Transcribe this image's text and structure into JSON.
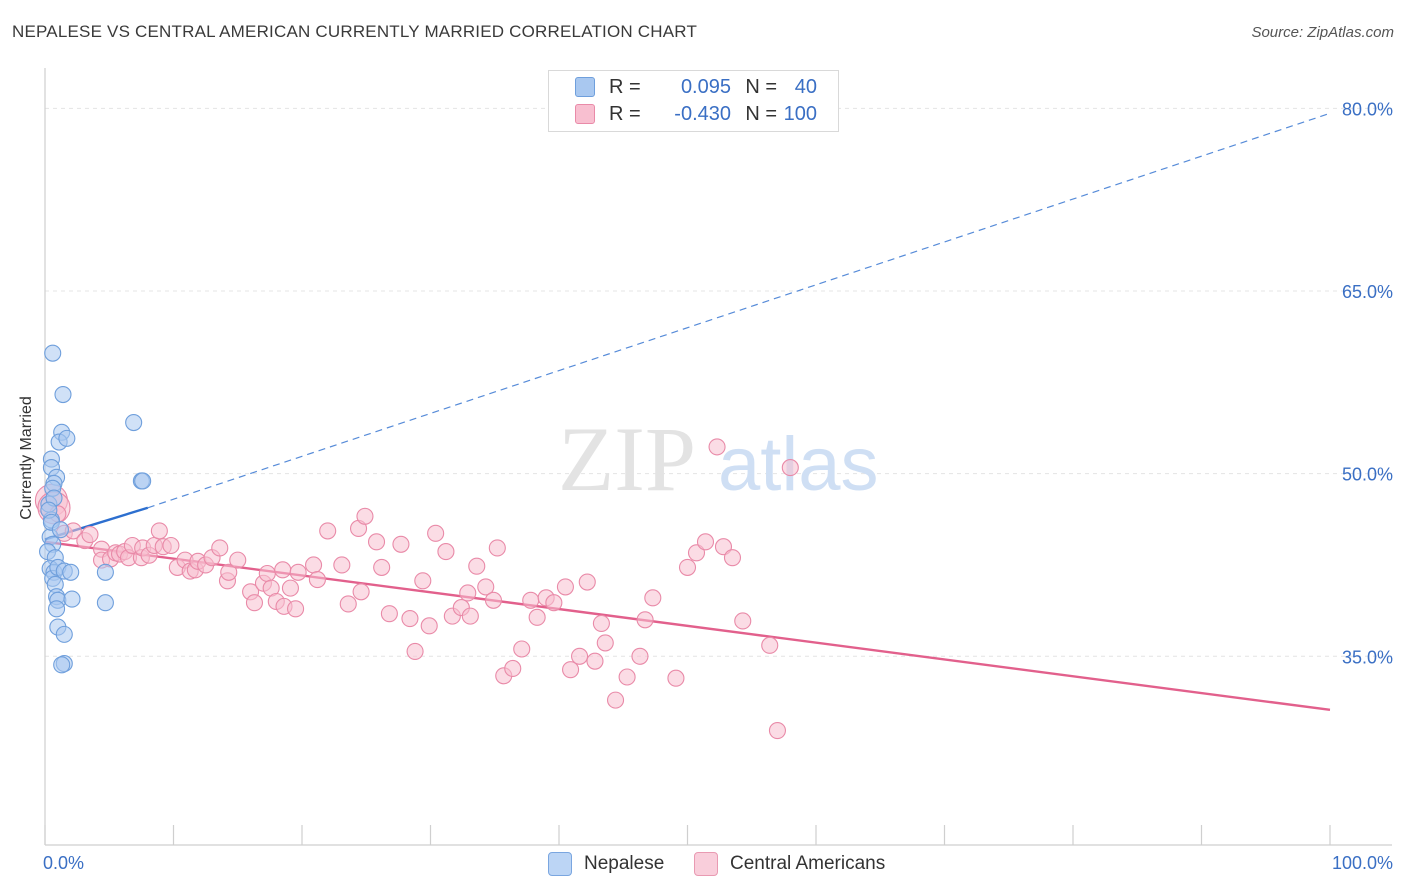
{
  "header": {
    "title": "NEPALESE VS CENTRAL AMERICAN CURRENTLY MARRIED CORRELATION CHART",
    "source": "Source: ZipAtlas.com"
  },
  "watermark": {
    "zip": "ZIP",
    "atlas": "atlas"
  },
  "legend": {
    "rows": [
      {
        "r_label": "R =",
        "r_value": "0.095",
        "n_label": "N =",
        "n_value": "40",
        "color": "#a9c8f0",
        "border": "#6f9fdc"
      },
      {
        "r_label": "R =",
        "r_value": "-0.430",
        "n_label": "N =",
        "n_value": "100",
        "color": "#f8bfd0",
        "border": "#e98aa8"
      }
    ]
  },
  "bottom_legend": [
    {
      "label": "Nepalese",
      "color": "#bcd5f5",
      "border": "#7aa6e0"
    },
    {
      "label": "Central Americans",
      "color": "#f9cedb",
      "border": "#e99ab2"
    }
  ],
  "chart_data": {
    "type": "scatter",
    "title": "NEPALESE VS CENTRAL AMERICAN CURRENTLY MARRIED CORRELATION CHART",
    "xlabel": "",
    "ylabel": "Currently Married",
    "xlim": [
      0,
      100
    ],
    "ylim": [
      19.5,
      82.5
    ],
    "x_tick_labels": [
      "0.0%",
      "100.0%"
    ],
    "y_ticks": [
      35,
      50,
      65,
      80
    ],
    "y_tick_labels": [
      "35.0%",
      "50.0%",
      "65.0%",
      "80.0%"
    ],
    "grid": true,
    "series": [
      {
        "name": "Nepalese",
        "color": "#6f9fdc",
        "fill": "#a9c8f0",
        "trend": {
          "solid": [
            [
              0,
              44.6
            ],
            [
              8,
              47.2
            ]
          ],
          "dashed": [
            [
              8,
              47.2
            ],
            [
              100,
              79.6
            ]
          ],
          "color": "#2d6fcf"
        },
        "points": [
          [
            0.3,
            47.5
          ],
          [
            0.5,
            46.2
          ],
          [
            0.4,
            44.8
          ],
          [
            0.6,
            44.2
          ],
          [
            0.2,
            43.6
          ],
          [
            0.8,
            43.1
          ],
          [
            0.4,
            42.2
          ],
          [
            0.7,
            41.9
          ],
          [
            0.6,
            41.4
          ],
          [
            1.0,
            42.3
          ],
          [
            1.5,
            42.0
          ],
          [
            2.0,
            41.9
          ],
          [
            4.7,
            41.9
          ],
          [
            0.8,
            40.9
          ],
          [
            0.9,
            39.9
          ],
          [
            1.0,
            39.6
          ],
          [
            0.9,
            38.9
          ],
          [
            2.1,
            39.7
          ],
          [
            4.7,
            39.4
          ],
          [
            1.0,
            37.4
          ],
          [
            1.5,
            36.8
          ],
          [
            1.5,
            34.4
          ],
          [
            1.3,
            34.3
          ],
          [
            1.4,
            56.5
          ],
          [
            6.9,
            54.2
          ],
          [
            1.3,
            53.4
          ],
          [
            1.1,
            52.6
          ],
          [
            1.7,
            52.9
          ],
          [
            0.5,
            51.2
          ],
          [
            0.5,
            50.5
          ],
          [
            0.9,
            49.7
          ],
          [
            0.7,
            49.2
          ],
          [
            0.6,
            48.8
          ],
          [
            7.5,
            49.4
          ],
          [
            7.6,
            49.4
          ],
          [
            0.7,
            48.0
          ],
          [
            0.3,
            47.0
          ],
          [
            0.5,
            46.0
          ],
          [
            1.2,
            45.4
          ],
          [
            0.6,
            59.9
          ]
        ]
      },
      {
        "name": "Central Americans",
        "color": "#e98aa8",
        "fill": "#f8bfd0",
        "trend": {
          "solid": [
            [
              0,
              44.4
            ],
            [
              100,
              30.6
            ]
          ],
          "color": "#e2608c"
        },
        "points": [
          [
            0.5,
            47.8
          ],
          [
            0.7,
            47.2
          ],
          [
            1.0,
            46.7
          ],
          [
            1.5,
            45.1
          ],
          [
            2.2,
            45.3
          ],
          [
            3.1,
            44.5
          ],
          [
            3.5,
            45.0
          ],
          [
            4.4,
            43.8
          ],
          [
            4.4,
            42.9
          ],
          [
            5.1,
            43.0
          ],
          [
            5.5,
            43.5
          ],
          [
            5.8,
            43.4
          ],
          [
            6.2,
            43.6
          ],
          [
            6.5,
            43.1
          ],
          [
            6.8,
            44.1
          ],
          [
            7.5,
            43.1
          ],
          [
            7.6,
            43.9
          ],
          [
            8.1,
            43.3
          ],
          [
            8.5,
            44.1
          ],
          [
            8.9,
            45.3
          ],
          [
            9.2,
            44.0
          ],
          [
            9.8,
            44.1
          ],
          [
            10.3,
            42.3
          ],
          [
            10.9,
            42.9
          ],
          [
            11.3,
            42.0
          ],
          [
            11.7,
            42.1
          ],
          [
            11.9,
            42.8
          ],
          [
            12.5,
            42.5
          ],
          [
            13.0,
            43.1
          ],
          [
            13.6,
            43.9
          ],
          [
            14.2,
            41.2
          ],
          [
            14.3,
            41.9
          ],
          [
            15.0,
            42.9
          ],
          [
            16.0,
            40.3
          ],
          [
            16.3,
            39.4
          ],
          [
            17.0,
            41.0
          ],
          [
            17.3,
            41.8
          ],
          [
            17.6,
            40.6
          ],
          [
            18.0,
            39.5
          ],
          [
            18.5,
            42.1
          ],
          [
            18.6,
            39.1
          ],
          [
            19.1,
            40.6
          ],
          [
            19.7,
            41.9
          ],
          [
            19.5,
            38.9
          ],
          [
            20.9,
            42.5
          ],
          [
            21.2,
            41.3
          ],
          [
            22.0,
            45.3
          ],
          [
            23.1,
            42.5
          ],
          [
            23.6,
            39.3
          ],
          [
            24.4,
            45.5
          ],
          [
            24.6,
            40.3
          ],
          [
            24.9,
            46.5
          ],
          [
            25.8,
            44.4
          ],
          [
            26.2,
            42.3
          ],
          [
            26.8,
            38.5
          ],
          [
            27.7,
            44.2
          ],
          [
            28.4,
            38.1
          ],
          [
            28.8,
            35.4
          ],
          [
            29.4,
            41.2
          ],
          [
            29.9,
            37.5
          ],
          [
            30.4,
            45.1
          ],
          [
            31.2,
            43.6
          ],
          [
            31.7,
            38.3
          ],
          [
            32.4,
            39.0
          ],
          [
            32.9,
            40.2
          ],
          [
            33.1,
            38.3
          ],
          [
            33.6,
            42.4
          ],
          [
            34.3,
            40.7
          ],
          [
            34.9,
            39.6
          ],
          [
            35.2,
            43.9
          ],
          [
            35.7,
            33.4
          ],
          [
            36.4,
            34.0
          ],
          [
            37.1,
            35.6
          ],
          [
            37.8,
            39.6
          ],
          [
            38.3,
            38.2
          ],
          [
            39.0,
            39.8
          ],
          [
            39.6,
            39.4
          ],
          [
            40.5,
            40.7
          ],
          [
            40.9,
            33.9
          ],
          [
            41.6,
            35.0
          ],
          [
            42.2,
            41.1
          ],
          [
            42.8,
            34.6
          ],
          [
            43.3,
            37.7
          ],
          [
            43.6,
            36.1
          ],
          [
            44.4,
            31.4
          ],
          [
            45.3,
            33.3
          ],
          [
            46.3,
            35.0
          ],
          [
            46.7,
            38.0
          ],
          [
            47.3,
            39.8
          ],
          [
            49.1,
            33.2
          ],
          [
            50.0,
            42.3
          ],
          [
            50.7,
            43.5
          ],
          [
            51.4,
            44.4
          ],
          [
            52.3,
            52.2
          ],
          [
            52.8,
            44.0
          ],
          [
            53.5,
            43.1
          ],
          [
            54.3,
            37.9
          ],
          [
            56.4,
            35.9
          ],
          [
            57.0,
            28.9
          ],
          [
            58.0,
            50.5
          ]
        ]
      }
    ]
  }
}
